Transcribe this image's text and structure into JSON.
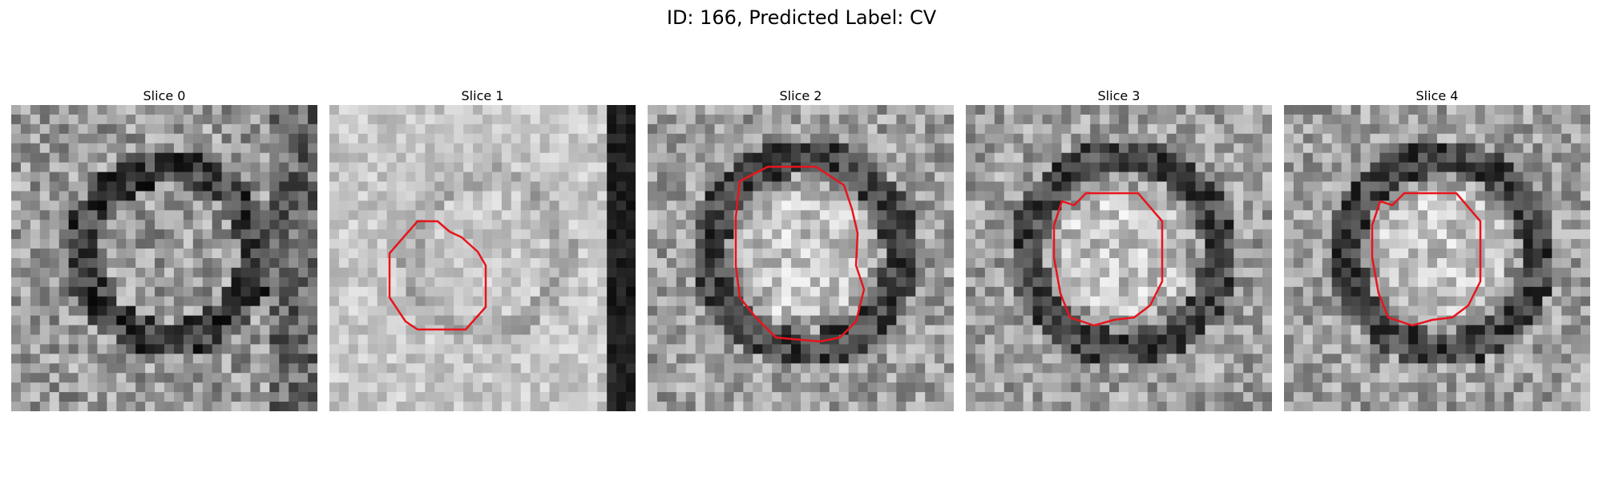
{
  "figure": {
    "title": "ID: 166, Predicted Label: CV"
  },
  "overlay_color": "#e8141c",
  "panels": [
    {
      "title": "Slice 0",
      "seed": 11,
      "bright": 0.6,
      "contrast": 0.22,
      "has_contour": false
    },
    {
      "title": "Slice 1",
      "seed": 23,
      "bright": 0.78,
      "contrast": 0.12,
      "has_contour": true
    },
    {
      "title": "Slice 2",
      "seed": 37,
      "bright": 0.62,
      "contrast": 0.2,
      "has_contour": true
    },
    {
      "title": "Slice 3",
      "seed": 53,
      "bright": 0.62,
      "contrast": 0.2,
      "has_contour": true
    },
    {
      "title": "Slice 4",
      "seed": 71,
      "bright": 0.62,
      "contrast": 0.2,
      "has_contour": true
    }
  ]
}
